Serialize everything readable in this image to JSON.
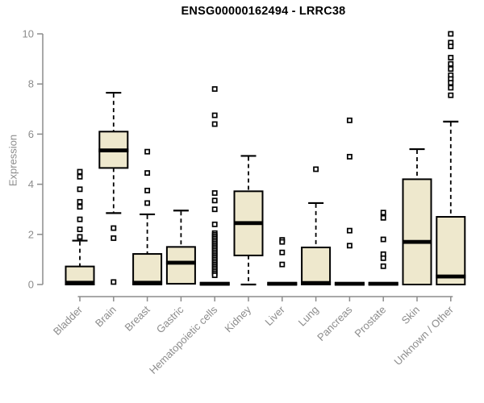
{
  "title": "ENSG00000162494 - LRRC38",
  "chart_data": {
    "type": "boxplot",
    "title": "ENSG00000162494 - LRRC38",
    "xlabel": "",
    "ylabel": "Expression",
    "ylim": [
      0,
      10
    ],
    "yticks": [
      0,
      2,
      4,
      6,
      8,
      10
    ],
    "grid": false,
    "legend": "none",
    "box_fill_color": "#EEE8CD",
    "box_border_color": "#000000",
    "axis_color": "#8c8c8c",
    "categories": [
      "Bladder",
      "Brain",
      "Breast",
      "Gastric",
      "Hematopoietic cells",
      "Kidney",
      "Liver",
      "Lung",
      "Pancreas",
      "Prostate",
      "Skin",
      "Unknown / Other"
    ],
    "boxes": [
      {
        "label": "Bladder",
        "low": 0,
        "q1": 0,
        "median": 0.07,
        "q3": 0.72,
        "high": 1.75,
        "outliers": [
          4.5,
          4.3,
          3.8,
          3.3,
          3.1,
          2.6,
          2.2,
          1.9
        ]
      },
      {
        "label": "Brain",
        "low": 2.85,
        "q1": 4.65,
        "median": 5.35,
        "q3": 6.1,
        "high": 7.65,
        "outliers": [
          2.25,
          1.85,
          0.1
        ]
      },
      {
        "label": "Breast",
        "low": 0,
        "q1": 0,
        "median": 0.07,
        "q3": 1.22,
        "high": 2.8,
        "outliers": [
          5.3,
          4.45,
          3.75,
          3.25
        ]
      },
      {
        "label": "Gastric",
        "low": 0,
        "q1": 0.03,
        "median": 0.87,
        "q3": 1.5,
        "high": 2.95,
        "outliers": []
      },
      {
        "label": "Hematopoietic cells",
        "low": 0,
        "q1": 0,
        "median": 0.03,
        "q3": 0.06,
        "high": 0.06,
        "outliers": [
          7.8,
          6.75,
          6.4,
          3.65,
          3.35,
          3.0,
          2.4,
          2.05,
          1.98,
          1.91,
          1.84,
          1.77,
          1.7,
          1.63,
          1.56,
          1.49,
          1.42,
          1.35,
          1.28,
          1.21,
          1.14,
          1.07,
          1.0,
          0.93,
          0.86,
          0.79,
          0.72,
          0.65,
          0.58,
          0.51,
          0.44,
          0.37
        ]
      },
      {
        "label": "Kidney",
        "low": 0,
        "q1": 1.16,
        "median": 2.45,
        "q3": 3.72,
        "high": 5.13,
        "outliers": []
      },
      {
        "label": "Liver",
        "low": 0,
        "q1": 0,
        "median": 0.03,
        "q3": 0.06,
        "high": 0.06,
        "outliers": [
          1.78,
          1.7,
          1.28,
          0.8
        ]
      },
      {
        "label": "Lung",
        "low": 0,
        "q1": 0,
        "median": 0.06,
        "q3": 1.48,
        "high": 3.25,
        "outliers": [
          4.6
        ]
      },
      {
        "label": "Pancreas",
        "low": 0,
        "q1": 0,
        "median": 0.03,
        "q3": 0.06,
        "high": 0.06,
        "outliers": [
          6.55,
          5.1,
          2.15,
          1.55
        ]
      },
      {
        "label": "Prostate",
        "low": 0,
        "q1": 0,
        "median": 0.03,
        "q3": 0.06,
        "high": 0.06,
        "outliers": [
          2.87,
          2.66,
          1.8,
          1.21,
          1.05,
          0.73
        ]
      },
      {
        "label": "Skin",
        "low": 0,
        "q1": 0,
        "median": 1.7,
        "q3": 4.2,
        "high": 5.4,
        "outliers": []
      },
      {
        "label": "Unknown / Other",
        "low": 0,
        "q1": 0,
        "median": 0.32,
        "q3": 2.7,
        "high": 6.5,
        "outliers": [
          10.0,
          9.65,
          9.5,
          9.05,
          8.8,
          8.6,
          8.35,
          8.2,
          8.05,
          7.85,
          7.55
        ]
      }
    ]
  }
}
